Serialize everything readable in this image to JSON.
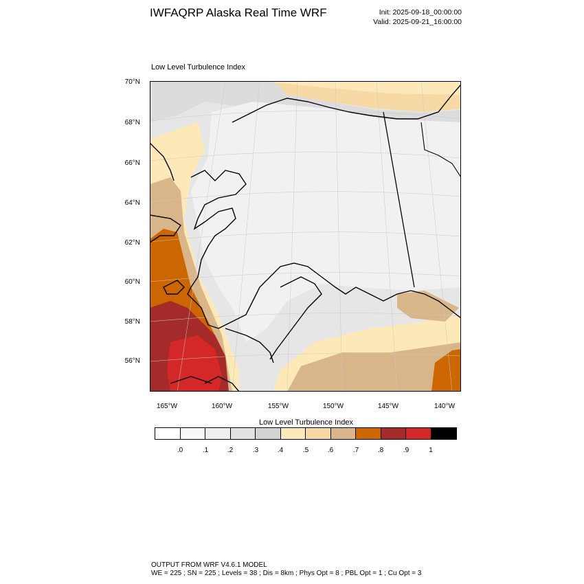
{
  "header": {
    "title": "IWFAQRP Alaska Real Time WRF",
    "init": "Init: 2025-09-18_00:00:00",
    "valid": "Valid: 2025-09-21_16:00:00"
  },
  "plot": {
    "subtitle": "Low Level Turbulence Index",
    "lat_labels": [
      "70°N",
      "68°N",
      "66°N",
      "64°N",
      "62°N",
      "60°N",
      "58°N",
      "56°N"
    ],
    "lon_labels": [
      "165°W",
      "160°W",
      "155°W",
      "150°W",
      "145°W",
      "140°W"
    ]
  },
  "colorbar": {
    "title": "Low Level Turbulence Index",
    "labels": [
      ".0",
      ".1",
      ".2",
      ".3",
      ".4",
      ".5",
      ".6",
      ".7",
      ".8",
      ".9",
      "1"
    ],
    "colors": [
      "#ffffff",
      "#f7f7f7",
      "#efefef",
      "#e1e1e1",
      "#d2d2d2",
      "#fde9b8",
      "#f7d9a6",
      "#d8b68a",
      "#cc6600",
      "#a52a2a",
      "#d42828",
      "#000000"
    ]
  },
  "footer": {
    "line1": "OUTPUT FROM WRF V4.6.1 MODEL",
    "line2": "WE = 225 ; SN = 225 ; Levels = 38 ; Dis = 8km ; Phys Opt = 8 ; PBL Opt = 1 ; Cu Opt = 3"
  }
}
